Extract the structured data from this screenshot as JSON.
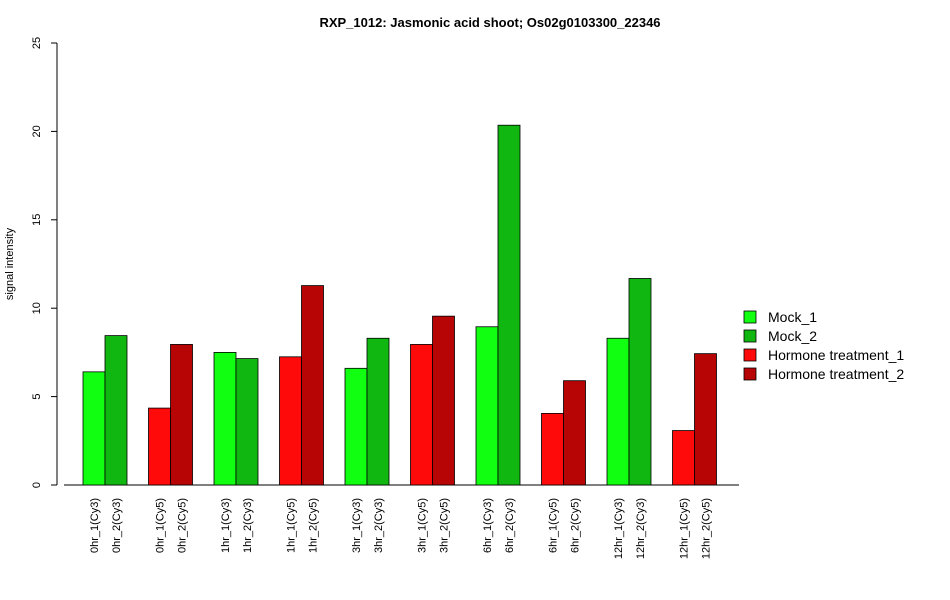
{
  "chart_data": {
    "type": "bar",
    "title": "RXP_1012: Jasmonic acid shoot; Os02g0103300_22346",
    "xlabel": "",
    "ylabel": "signal intensity",
    "ylim": [
      0,
      25
    ],
    "yticks": [
      0,
      5,
      10,
      15,
      20,
      25
    ],
    "grid": false,
    "legend_position": "right",
    "legend": [
      {
        "label": "Mock_1",
        "color": "#11ff11"
      },
      {
        "label": "Mock_2",
        "color": "#10b710"
      },
      {
        "label": "Hormone treatment_1",
        "color": "#ff0a0a"
      },
      {
        "label": "Hormone treatment_2",
        "color": "#b70404"
      }
    ],
    "groups": [
      {
        "bars": [
          {
            "label": "0hr_1(Cy3)",
            "value": 6.4,
            "color": "#11ff11"
          },
          {
            "label": "0hr_2(Cy3)",
            "value": 8.45,
            "color": "#10b710"
          }
        ]
      },
      {
        "bars": [
          {
            "label": "0hr_1(Cy5)",
            "value": 4.35,
            "color": "#ff0a0a"
          },
          {
            "label": "0hr_2(Cy5)",
            "value": 7.95,
            "color": "#b70404"
          }
        ]
      },
      {
        "bars": [
          {
            "label": "1hr_1(Cy3)",
            "value": 7.5,
            "color": "#11ff11"
          },
          {
            "label": "1hr_2(Cy3)",
            "value": 7.15,
            "color": "#10b710"
          }
        ]
      },
      {
        "bars": [
          {
            "label": "1hr_1(Cy5)",
            "value": 7.25,
            "color": "#ff0a0a"
          },
          {
            "label": "1hr_2(Cy5)",
            "value": 11.28,
            "color": "#b70404"
          }
        ]
      },
      {
        "bars": [
          {
            "label": "3hr_1(Cy3)",
            "value": 6.6,
            "color": "#11ff11"
          },
          {
            "label": "3hr_2(Cy3)",
            "value": 8.3,
            "color": "#10b710"
          }
        ]
      },
      {
        "bars": [
          {
            "label": "3hr_1(Cy5)",
            "value": 7.95,
            "color": "#ff0a0a"
          },
          {
            "label": "3hr_2(Cy5)",
            "value": 9.55,
            "color": "#b70404"
          }
        ]
      },
      {
        "bars": [
          {
            "label": "6hr_1(Cy3)",
            "value": 8.95,
            "color": "#11ff11"
          },
          {
            "label": "6hr_2(Cy3)",
            "value": 20.35,
            "color": "#10b710"
          }
        ]
      },
      {
        "bars": [
          {
            "label": "6hr_1(Cy5)",
            "value": 4.05,
            "color": "#ff0a0a"
          },
          {
            "label": "6hr_2(Cy5)",
            "value": 5.9,
            "color": "#b70404"
          }
        ]
      },
      {
        "bars": [
          {
            "label": "12hr_1(Cy3)",
            "value": 8.3,
            "color": "#11ff11"
          },
          {
            "label": "12hr_2(Cy3)",
            "value": 11.68,
            "color": "#10b710"
          }
        ]
      },
      {
        "bars": [
          {
            "label": "12hr_1(Cy5)",
            "value": 3.08,
            "color": "#ff0a0a"
          },
          {
            "label": "12hr_2(Cy5)",
            "value": 7.43,
            "color": "#b70404"
          }
        ]
      }
    ]
  }
}
